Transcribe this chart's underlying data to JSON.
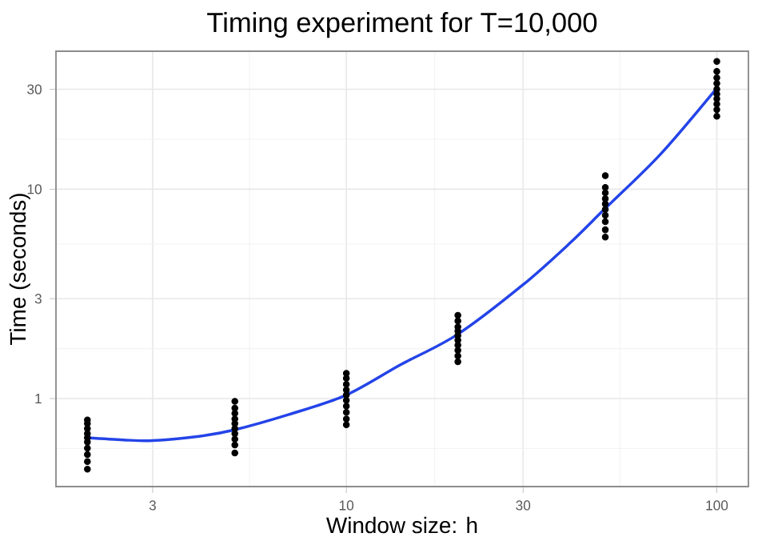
{
  "chart_data": {
    "type": "scatter",
    "title": "Timing experiment for T=10,000",
    "xlabel": "Window size: h",
    "ylabel": "Time (seconds)",
    "log": "xy",
    "grid": true,
    "xlim": [
      1.645,
      121.7
    ],
    "ylim": [
      0.38,
      45.6
    ],
    "xticks": [
      3,
      10,
      30,
      100
    ],
    "yticks": [
      1,
      3,
      10,
      30
    ],
    "series": [
      {
        "marker": "circle",
        "color": "#000000",
        "x": [
          2,
          2,
          2,
          2,
          2,
          2,
          2,
          2,
          2,
          2,
          5,
          5,
          5,
          5,
          5,
          5,
          5,
          5,
          5,
          5,
          10,
          10,
          10,
          10,
          10,
          10,
          10,
          10,
          10,
          10,
          20,
          20,
          20,
          20,
          20,
          20,
          20,
          20,
          20,
          20,
          50,
          50,
          50,
          50,
          50,
          50,
          50,
          50,
          50,
          50,
          100,
          100,
          100,
          100,
          100,
          100,
          100,
          100,
          100,
          100
        ],
        "values": [
          0.46,
          0.5,
          0.54,
          0.58,
          0.62,
          0.65,
          0.68,
          0.72,
          0.76,
          0.79,
          0.55,
          0.6,
          0.64,
          0.68,
          0.72,
          0.76,
          0.8,
          0.85,
          0.9,
          0.97,
          0.75,
          0.8,
          0.86,
          0.92,
          0.98,
          1.04,
          1.1,
          1.17,
          1.25,
          1.32,
          1.5,
          1.6,
          1.7,
          1.8,
          1.9,
          2.0,
          2.1,
          2.2,
          2.35,
          2.5,
          5.9,
          6.4,
          7.0,
          7.5,
          8.0,
          8.5,
          9.0,
          9.6,
          10.2,
          11.6,
          22.3,
          24,
          25.5,
          27,
          28.5,
          30,
          32,
          34,
          36.5,
          40.8
        ]
      },
      {
        "type": "line",
        "marker": "none",
        "line_style": "solid",
        "color": "#2444e8",
        "x": [
          2,
          2.5,
          3,
          4,
          5,
          7,
          10,
          14,
          20,
          30,
          40,
          50,
          70,
          100
        ],
        "values": [
          0.65,
          0.635,
          0.63,
          0.66,
          0.71,
          0.84,
          1.04,
          1.45,
          2.03,
          3.5,
          5.5,
          8.1,
          14.5,
          30.4
        ]
      }
    ]
  }
}
